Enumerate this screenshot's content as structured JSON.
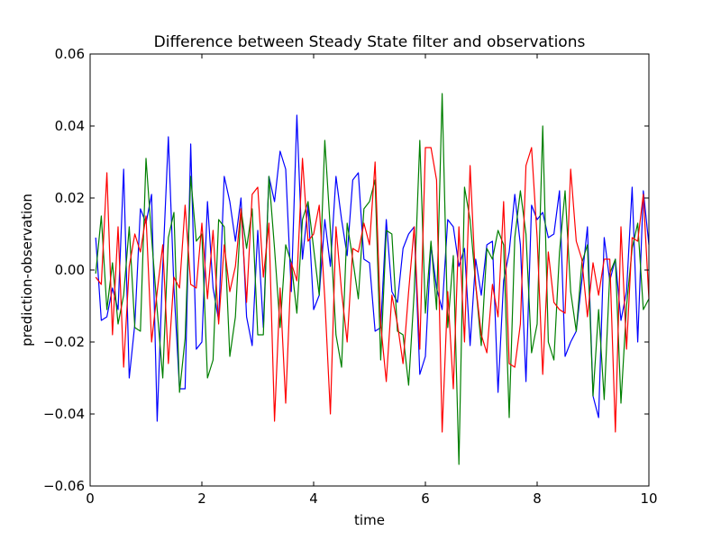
{
  "chart_data": {
    "type": "line",
    "title": "Difference between Steady State filter and observations",
    "xlabel": "time",
    "ylabel": "prediction-observation",
    "xlim": [
      0,
      10
    ],
    "ylim": [
      -0.06,
      0.06
    ],
    "xticks": [
      0,
      2,
      4,
      6,
      8,
      10
    ],
    "xtick_labels": [
      "0",
      "2",
      "4",
      "6",
      "8",
      "10"
    ],
    "yticks": [
      -0.06,
      -0.04,
      -0.02,
      0.0,
      0.02,
      0.04,
      0.06
    ],
    "ytick_labels": [
      "−0.06",
      "−0.04",
      "−0.02",
      "0.00",
      "0.02",
      "0.04",
      "0.06"
    ],
    "grid": false,
    "legend": "none",
    "x": [
      0.1,
      0.2,
      0.3,
      0.4,
      0.5,
      0.6,
      0.7,
      0.8,
      0.9,
      1.0,
      1.1,
      1.2,
      1.3,
      1.4,
      1.5,
      1.6,
      1.7,
      1.8,
      1.9,
      2.0,
      2.1,
      2.2,
      2.3,
      2.4,
      2.5,
      2.6,
      2.7,
      2.8,
      2.9,
      3.0,
      3.1,
      3.2,
      3.3,
      3.4,
      3.5,
      3.6,
      3.7,
      3.8,
      3.9,
      4.0,
      4.1,
      4.2,
      4.3,
      4.4,
      4.5,
      4.6,
      4.7,
      4.8,
      4.9,
      5.0,
      5.1,
      5.2,
      5.3,
      5.4,
      5.5,
      5.6,
      5.7,
      5.8,
      5.9,
      6.0,
      6.1,
      6.2,
      6.3,
      6.4,
      6.5,
      6.6,
      6.7,
      6.8,
      6.9,
      7.0,
      7.1,
      7.2,
      7.3,
      7.4,
      7.5,
      7.6,
      7.7,
      7.8,
      7.9,
      8.0,
      8.1,
      8.2,
      8.3,
      8.4,
      8.5,
      8.6,
      8.7,
      8.8,
      8.9,
      9.0,
      9.1,
      9.2,
      9.3,
      9.4,
      9.5,
      9.6,
      9.7,
      9.8,
      9.9,
      10.0
    ],
    "series": [
      {
        "color": "#0000ff",
        "values": [
          0.009,
          -0.014,
          -0.013,
          -0.005,
          -0.011,
          0.028,
          -0.03,
          -0.015,
          0.017,
          0.013,
          0.021,
          -0.042,
          0.001,
          0.037,
          -0.005,
          -0.033,
          -0.033,
          0.035,
          -0.022,
          -0.02,
          0.019,
          -0.005,
          -0.014,
          0.026,
          0.019,
          0.008,
          0.02,
          -0.013,
          -0.021,
          0.011,
          -0.016,
          0.026,
          0.019,
          0.033,
          0.028,
          -0.006,
          0.043,
          0.003,
          0.018,
          -0.011,
          -0.007,
          0.014,
          0.001,
          0.026,
          0.014,
          0.004,
          0.025,
          0.027,
          0.003,
          0.002,
          -0.017,
          -0.016,
          0.014,
          -0.006,
          -0.009,
          0.006,
          0.01,
          0.012,
          -0.029,
          -0.024,
          0.007,
          -0.005,
          -0.011,
          0.014,
          0.012,
          0.001,
          0.006,
          -0.021,
          0.003,
          -0.007,
          0.007,
          0.008,
          -0.034,
          -0.003,
          0.005,
          0.021,
          0.007,
          -0.031,
          0.018,
          0.014,
          0.016,
          0.009,
          0.01,
          0.022,
          -0.024,
          -0.02,
          -0.017,
          -0.003,
          0.012,
          -0.035,
          -0.041,
          0.009,
          -0.003,
          0.003,
          -0.014,
          -0.006,
          0.023,
          -0.02,
          0.022,
          0.007
        ]
      },
      {
        "color": "#007f00",
        "values": [
          -0.001,
          0.015,
          -0.011,
          0.002,
          -0.015,
          -0.007,
          0.012,
          -0.016,
          -0.017,
          0.031,
          0.009,
          -0.011,
          -0.03,
          0.009,
          0.016,
          -0.034,
          -0.019,
          0.026,
          0.008,
          0.01,
          -0.03,
          -0.025,
          0.014,
          0.012,
          -0.024,
          -0.013,
          0.017,
          0.006,
          0.017,
          -0.018,
          -0.018,
          0.026,
          0.006,
          -0.016,
          0.007,
          0.002,
          -0.012,
          0.014,
          0.019,
          0.006,
          -0.007,
          0.036,
          0.011,
          -0.018,
          -0.027,
          0.013,
          0.003,
          -0.008,
          0.017,
          0.019,
          0.025,
          -0.025,
          0.011,
          0.01,
          -0.017,
          -0.018,
          -0.032,
          -0.006,
          0.036,
          -0.012,
          0.008,
          -0.011,
          0.049,
          -0.016,
          0.004,
          -0.054,
          0.023,
          0.014,
          -0.004,
          -0.021,
          0.006,
          0.003,
          0.011,
          0.007,
          -0.041,
          0.009,
          0.022,
          0.01,
          -0.023,
          -0.015,
          0.04,
          -0.02,
          -0.025,
          0.005,
          0.022,
          -0.006,
          -0.017,
          0.002,
          0.007,
          -0.035,
          -0.011,
          -0.036,
          -0.001,
          0.003,
          -0.037,
          -0.01,
          0.006,
          0.013,
          -0.011,
          -0.008
        ]
      },
      {
        "color": "#ff0000",
        "values": [
          -0.002,
          -0.004,
          0.027,
          -0.018,
          0.012,
          -0.027,
          0.001,
          0.01,
          0.005,
          0.015,
          -0.02,
          -0.006,
          0.007,
          -0.026,
          -0.002,
          -0.005,
          0.018,
          -0.004,
          -0.005,
          0.013,
          -0.008,
          0.011,
          -0.015,
          0.007,
          -0.006,
          0.001,
          0.017,
          -0.009,
          0.021,
          0.023,
          -0.002,
          0.013,
          -0.042,
          -0.005,
          -0.037,
          0.002,
          -0.003,
          0.031,
          0.008,
          0.01,
          0.018,
          -0.008,
          -0.04,
          0.012,
          -0.006,
          -0.02,
          0.006,
          0.005,
          0.013,
          0.007,
          0.03,
          -0.015,
          -0.031,
          -0.007,
          -0.015,
          -0.026,
          -0.006,
          0.012,
          -0.022,
          0.034,
          0.034,
          0.025,
          -0.045,
          -0.006,
          -0.033,
          0.012,
          -0.02,
          0.029,
          -0.004,
          -0.018,
          -0.023,
          -0.004,
          -0.013,
          0.019,
          -0.026,
          -0.027,
          -0.015,
          0.029,
          0.034,
          0.009,
          -0.029,
          0.005,
          -0.009,
          -0.011,
          -0.012,
          0.028,
          0.008,
          0.003,
          -0.013,
          0.002,
          -0.007,
          0.003,
          0.003,
          -0.045,
          0.012,
          -0.022,
          0.009,
          0.008,
          0.021,
          -0.008
        ]
      }
    ]
  }
}
